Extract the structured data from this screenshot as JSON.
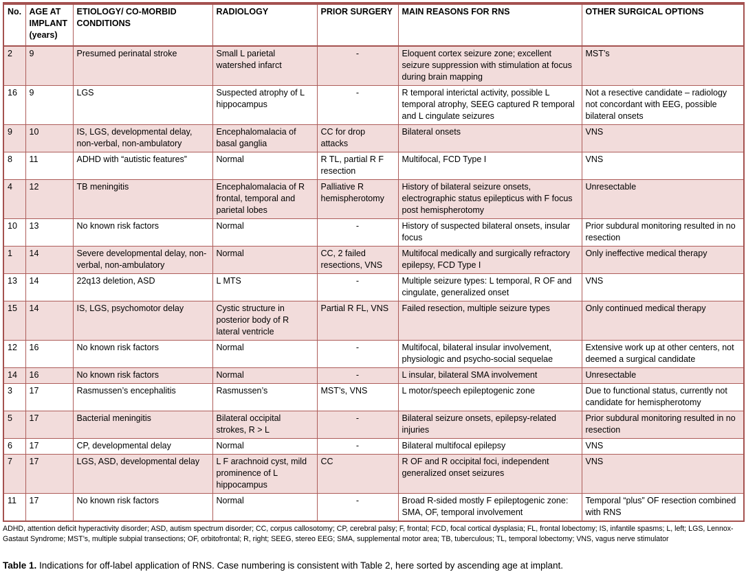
{
  "colors": {
    "row_shading": "#f2dcdb",
    "border_accent": "#a4514f",
    "text": "#000000"
  },
  "table": {
    "columns": [
      {
        "key": "no",
        "label": "No."
      },
      {
        "key": "age_at_implant",
        "label": "AGE AT IMPLANT (years)"
      },
      {
        "key": "etiology",
        "label": "ETIOLOGY/ CO-MORBID CONDITIONS"
      },
      {
        "key": "radiology",
        "label": "RADIOLOGY"
      },
      {
        "key": "prior_surgery",
        "label": "PRIOR SURGERY"
      },
      {
        "key": "main_reasons",
        "label": "MAIN REASONS FOR RNS"
      },
      {
        "key": "other_options",
        "label": "OTHER SURGICAL OPTIONS"
      }
    ],
    "rows": [
      {
        "shaded": true,
        "cells": [
          "2",
          "9",
          "Presumed perinatal stroke",
          "Small L parietal watershed infarct",
          "-",
          "Eloquent cortex seizure zone; excellent seizure suppression with stimulation at focus during brain mapping",
          "MST’s"
        ]
      },
      {
        "shaded": false,
        "cells": [
          "16",
          "9",
          "LGS",
          "Suspected atrophy of L hippocampus",
          "-",
          "R temporal interictal activity, possible L temporal atrophy, SEEG captured R temporal and L cingulate seizures",
          "Not a resective candidate – radiology not concordant with EEG, possible bilateral onsets"
        ]
      },
      {
        "shaded": true,
        "cells": [
          "9",
          "10",
          "IS, LGS, developmental delay, non-verbal, non-ambulatory",
          "Encephalomalacia of basal ganglia",
          "CC for drop attacks",
          "Bilateral onsets",
          "VNS"
        ]
      },
      {
        "shaded": false,
        "cells": [
          "8",
          "11",
          "ADHD with “autistic features”",
          "Normal",
          "R TL, partial R F resection",
          "Multifocal, FCD Type I",
          "VNS"
        ]
      },
      {
        "shaded": true,
        "cells": [
          "4",
          "12",
          "TB meningitis",
          "Encephalomalacia of R frontal, temporal and parietal lobes",
          "Palliative R hemispherotomy",
          "History of bilateral seizure onsets, electrographic status epilepticus with F focus post hemispherotomy",
          "Unresectable"
        ]
      },
      {
        "shaded": false,
        "cells": [
          "10",
          "13",
          "No known risk factors",
          "Normal",
          "-",
          "History of suspected bilateral onsets, insular focus",
          "Prior subdural monitoring resulted in no resection"
        ]
      },
      {
        "shaded": true,
        "cells": [
          "1",
          "14",
          "Severe developmental delay, non-verbal, non-ambulatory",
          "Normal",
          "CC, 2 failed resections, VNS",
          "Multifocal medically and surgically refractory epilepsy, FCD Type I",
          "Only ineffective medical therapy"
        ]
      },
      {
        "shaded": false,
        "cells": [
          "13",
          "14",
          "22q13 deletion, ASD",
          "L MTS",
          "-",
          "Multiple seizure types: L temporal, R OF and cingulate, generalized onset",
          "VNS"
        ]
      },
      {
        "shaded": true,
        "cells": [
          "15",
          "14",
          "IS, LGS, psychomotor delay",
          "Cystic structure in posterior body of R lateral ventricle",
          "Partial R FL, VNS",
          "Failed resection, multiple seizure types",
          "Only continued medical therapy"
        ]
      },
      {
        "shaded": false,
        "cells": [
          "12",
          "16",
          "No known risk factors",
          "Normal",
          "-",
          "Multifocal, bilateral insular involvement, physiologic and psycho-social sequelae",
          "Extensive work up at other centers, not deemed a surgical candidate"
        ]
      },
      {
        "shaded": true,
        "cells": [
          "14",
          "16",
          "No known risk factors",
          "Normal",
          "-",
          "L insular, bilateral SMA involvement",
          "Unresectable"
        ]
      },
      {
        "shaded": false,
        "cells": [
          "3",
          "17",
          "Rasmussen’s encephalitis",
          "Rasmussen’s",
          "MST’s, VNS",
          "L motor/speech epileptogenic zone",
          "Due to functional status, currently not candidate for hemispherotomy"
        ]
      },
      {
        "shaded": true,
        "cells": [
          "5",
          "17",
          "Bacterial meningitis",
          "Bilateral occipital strokes, R > L",
          "-",
          "Bilateral seizure onsets, epilepsy-related injuries",
          "Prior subdural monitoring resulted in no resection"
        ]
      },
      {
        "shaded": false,
        "cells": [
          "6",
          "17",
          "CP, developmental delay",
          "Normal",
          "-",
          "Bilateral multifocal epilepsy",
          "VNS"
        ]
      },
      {
        "shaded": true,
        "cells": [
          "7",
          "17",
          "LGS, ASD, developmental delay",
          "L F arachnoid cyst, mild prominence of L hippocampus",
          "CC",
          "R OF and R occipital foci, independent generalized onset seizures",
          "VNS"
        ]
      },
      {
        "shaded": false,
        "cells": [
          "11",
          "17",
          "No known risk factors",
          "Normal",
          "-",
          "Broad R-sided mostly F epileptogenic zone: SMA, OF, temporal involvement",
          "Temporal “plus” OF resection combined with RNS"
        ]
      }
    ]
  },
  "footnote": "ADHD, attention deficit hyperactivity disorder; ASD, autism spectrum disorder; CC, corpus callosotomy; CP, cerebral palsy; F, frontal; FCD, focal cortical dysplasia; FL, frontal lobectomy; IS, infantile spasms; L, left; LGS, Lennox-Gastaut Syndrome; MST’s, multiple subpial transections; OF, orbitofrontal; R, right; SEEG, stereo EEG; SMA, supplemental motor area; TB, tuberculous; TL, temporal lobectomy; VNS, vagus nerve stimulator",
  "caption": {
    "prefix": "Table 1.",
    "text": " Indications for off-label application of RNS. Case numbering is consistent with Table 2, here sorted by ascending age at implant."
  }
}
